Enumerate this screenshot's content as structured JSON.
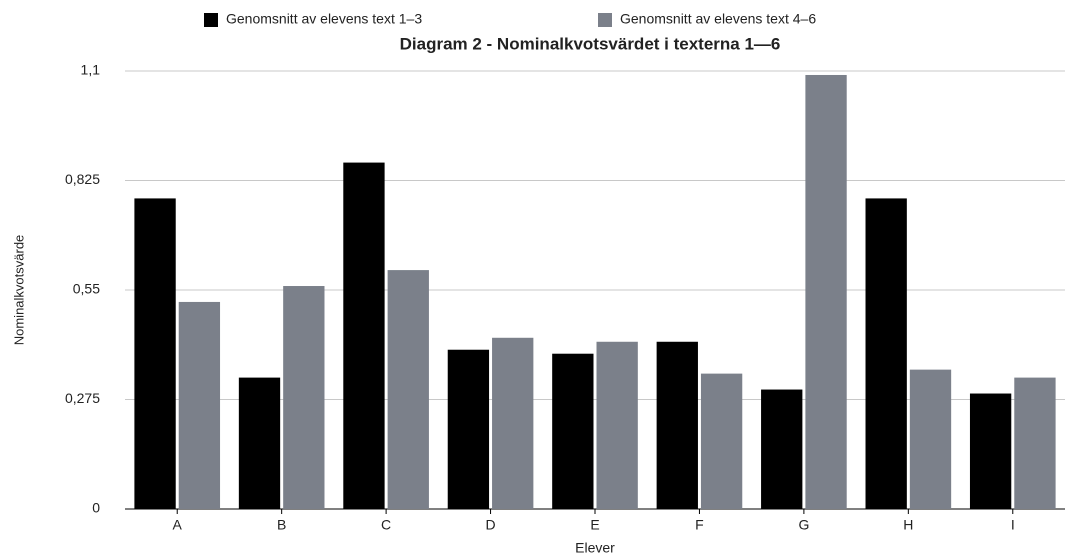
{
  "chart_data": {
    "type": "bar",
    "title": "Diagram 2 - Nominalkvotsvärdet i texterna 1—6",
    "x_label": "Elever",
    "y_label": "Nominalkvotsvärde",
    "categories": [
      "A",
      "B",
      "C",
      "D",
      "E",
      "F",
      "G",
      "H",
      "I"
    ],
    "series": [
      {
        "name": "Genomsnitt av elevens text 1–3",
        "color": "#000000",
        "values": [
          0.78,
          0.33,
          0.87,
          0.4,
          0.39,
          0.42,
          0.3,
          0.78,
          0.29
        ]
      },
      {
        "name": "Genomsnitt av elevens text 4–6",
        "color": "#7b808a",
        "values": [
          0.52,
          0.56,
          0.6,
          0.43,
          0.42,
          0.34,
          1.09,
          0.35,
          0.33
        ]
      }
    ],
    "ylim": [
      0,
      1.1
    ],
    "yticks": [
      0,
      {
        "value": 0.275,
        "label": "0,275"
      },
      {
        "value": 0.55,
        "label": "0,55"
      },
      {
        "value": 0.825,
        "label": "0,825"
      },
      {
        "value": 1.1,
        "label": "1,1"
      }
    ],
    "grid": true
  }
}
